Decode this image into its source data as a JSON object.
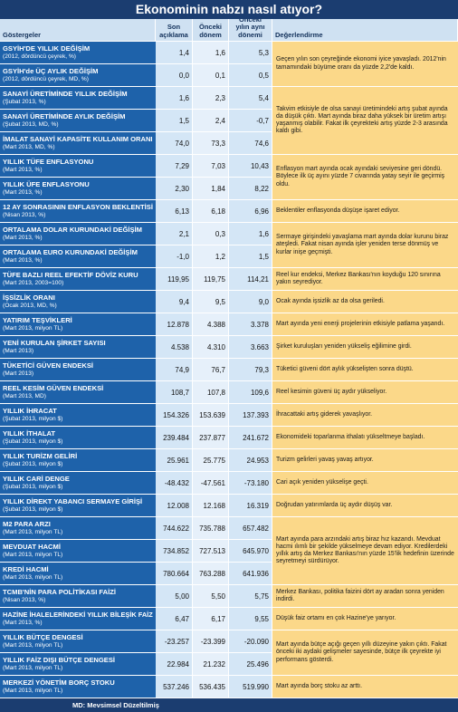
{
  "header": {
    "title": "Ekonominin nabzı nasıl atıyor?"
  },
  "table": {
    "columns": [
      "Göstergeler",
      "Son açıklama",
      "Önceki dönem",
      "Önceki yılın aynı dönemi",
      "Değerlendirme"
    ],
    "rows": [
      {
        "name": "GSYİH'DE YILLIK DEĞİŞİM",
        "period": "(2012, dördüncü çeyrek, %)",
        "values": [
          "1,4",
          "1,6",
          "5,3"
        ],
        "comment": "Geçen yılın son çeyreğinde ekonomi iyice yavaşladı. 2012'nin tamamındaki büyüme oranı da yüzde 2,2'de kaldı."
      },
      {
        "name": "GSYİH'de ÜÇ AYLIK DEĞİŞİM",
        "period": "(2012, dördüncü çeyrek, MD, %)",
        "values": [
          "0,0",
          "0,1",
          "0,5"
        ]
      },
      {
        "name": "SANAYİ ÜRETİMİNDE YILLIK DEĞİŞİM",
        "period": "(Şubat 2013, %)",
        "values": [
          "1,6",
          "2,3",
          "5,4"
        ],
        "comment": "Takvim etkisiyle de olsa sanayi üretimindeki artış şubat ayında da düşük çıktı. Mart ayında biraz daha yüksek bir üretim artışı yaşanmış olabilir. Fakat ilk çeyrekteki artış yüzde 2-3 arasında kaldı gibi."
      },
      {
        "name": "SANAYİ ÜRETİMİNDE AYLIK DEĞİŞİM",
        "period": "(Şubat 2013, MD, %)",
        "values": [
          "1,5",
          "2,4",
          "-0,7"
        ]
      },
      {
        "name": "İMALAT SANAYİ KAPASİTE KULLANIM ORANI",
        "period": "(Mart 2013, MD, %)",
        "values": [
          "74,0",
          "73,3",
          "74,6"
        ]
      },
      {
        "name": "YILLIK TÜFE ENFLASYONU",
        "period": "(Mart 2013, %)",
        "values": [
          "7,29",
          "7,03",
          "10,43"
        ],
        "comment": "Enflasyon mart ayında ocak ayındaki seviyesine geri döndü. Böylece ilk üç ayını yüzde 7 civarında yatay seyir ile geçirmiş oldu."
      },
      {
        "name": "YILLIK ÜFE ENFLASYONU",
        "period": "(Mart 2013, %)",
        "values": [
          "2,30",
          "1,84",
          "8,22"
        ]
      },
      {
        "name": "12 AY SONRASININ ENFLASYON BEKLENTİSİ",
        "period": "(Nisan 2013, %)",
        "values": [
          "6,13",
          "6,18",
          "6,96"
        ],
        "comment": "Beklentiler enflasyonda düşüşe işaret ediyor."
      },
      {
        "name": "ORTALAMA DOLAR KURUNDAKİ DEĞİŞİM",
        "period": "(Mart 2013, %)",
        "values": [
          "2,1",
          "0,3",
          "1,6"
        ],
        "comment": "Sermaye girişindeki yavaşlama mart ayında dolar kurunu biraz ateşledi. Fakat nisan ayında işler yeniden terse dönmüş ve kurlar inişe geçmişti."
      },
      {
        "name": "ORTALAMA EURO KURUNDAKİ DEĞİŞİM",
        "period": "(Mart 2013, %)",
        "values": [
          "-1,0",
          "1,2",
          "1,5"
        ]
      },
      {
        "name": "TÜFE BAZLI REEL EFEKTİF DÖVİZ KURU",
        "period": "(Mart 2013, 2003=100)",
        "values": [
          "119,95",
          "119,75",
          "114,21"
        ],
        "comment": "Reel kur endeksi, Merkez Bankası'nın koyduğu 120 sınırına yakın seyrediyor."
      },
      {
        "name": "İŞSİZLİK ORANI",
        "period": "(Ocak 2013, MD, %)",
        "values": [
          "9,4",
          "9,5",
          "9,0"
        ],
        "comment": "Ocak ayında işsizlik az da olsa geriledi."
      },
      {
        "name": "YATIRIM TEŞVİKLERİ",
        "period": "(Mart 2013, milyon TL)",
        "values": [
          "12.878",
          "4.388",
          "3.378"
        ],
        "comment": "Mart ayında yeni enerji projelerinin etkisiyle patlama yaşandı."
      },
      {
        "name": "YENİ KURULAN ŞİRKET SAYISI",
        "period": "(Mart 2013)",
        "values": [
          "4.538",
          "4.310",
          "3.663"
        ],
        "comment": "Şirket kuruluşları yeniden yükseliş eğilimine girdi."
      },
      {
        "name": "TÜKETİCİ GÜVEN ENDEKSİ",
        "period": "(Mart 2013)",
        "values": [
          "74,9",
          "76,7",
          "79,3"
        ],
        "comment": "Tüketici güveni dört aylık yükselişten sonra düştü."
      },
      {
        "name": "REEL KESİM GÜVEN ENDEKSİ",
        "period": "(Mart 2013, MD)",
        "values": [
          "108,7",
          "107,8",
          "109,6"
        ],
        "comment": "Reel kesimin güveni üç aydır yükseliyor."
      },
      {
        "name": "YILLIK İHRACAT",
        "period": "(Şubat 2013, milyon $)",
        "values": [
          "154.326",
          "153.639",
          "137.393"
        ],
        "comment": "İhracattaki artış giderek yavaşlıyor."
      },
      {
        "name": "YILLIK İTHALAT",
        "period": "(Şubat 2013, milyon $)",
        "values": [
          "239.484",
          "237.877",
          "241.672"
        ],
        "comment": "Ekonomideki toparlanma ithalatı yükseltmeye başladı."
      },
      {
        "name": "YILLIK TURİZM GELİRİ",
        "period": "(Şubat 2013, milyon $)",
        "values": [
          "25.961",
          "25.775",
          "24.953"
        ],
        "comment": "Turizm gelirleri yavaş yavaş artıyor."
      },
      {
        "name": "YILLIK CARİ DENGE",
        "period": "(Şubat 2013, milyon $)",
        "values": [
          "-48.432",
          "-47.561",
          "-73.180"
        ],
        "comment": "Cari açık yeniden yükselişe geçti."
      },
      {
        "name": "YILLIK DİREKT YABANCI SERMAYE GİRİŞİ",
        "period": "(Şubat 2013, milyon $)",
        "values": [
          "12.008",
          "12.168",
          "16.319"
        ],
        "comment": "Doğrudan yatırımlarda üç aydır düşüş var."
      },
      {
        "name": "M2 PARA ARZI",
        "period": "(Mart 2013, milyon TL)",
        "values": [
          "744.622",
          "735.788",
          "657.482"
        ],
        "comment": "Mart ayında para arzındaki artış biraz hız kazandı. Mevduat hacmi ılımlı bir şekilde yükselmeye devam ediyor. Kredilerdeki yıllık artış da Merkez Bankası'nın yüzde 15'lik hedefinin üzerinde seyretmeyi sürdürüyor."
      },
      {
        "name": "MEVDUAT HACMİ",
        "period": "(Mart 2013, milyon TL)",
        "values": [
          "734.852",
          "727.513",
          "645.970"
        ]
      },
      {
        "name": "KREDİ HACMİ",
        "period": "(Mart 2013, milyon TL)",
        "values": [
          "780.664",
          "763.288",
          "641.936"
        ]
      },
      {
        "name": "TCMB'NİN PARA POLİTİKASI FAİZİ",
        "period": "(Nisan 2013, %)",
        "values": [
          "5,00",
          "5,50",
          "5,75"
        ],
        "comment": "Merkez Bankası, politika faizini dört ay aradan sonra yeniden indirdi."
      },
      {
        "name": "HAZİNE İHALELERİNDEKİ YILLIK BİLEŞİK FAİZ",
        "period": "(Mart 2013, %)",
        "values": [
          "6,47",
          "6,17",
          "9,55"
        ],
        "comment": "Düşük faiz ortamı en çok Hazine'ye yarıyor."
      },
      {
        "name": "YILLIK BÜTÇE DENGESİ",
        "period": "(Mart 2013, milyon TL)",
        "values": [
          "-23.257",
          "-23.399",
          "-20.090"
        ],
        "comment": "Mart ayında bütçe açığı geçen yıllı düzeyine yakın çıktı. Fakat önceki iki aydaki gelişmeler sayesinde, bütçe ilk çeyrekte iyi performans gösterdi."
      },
      {
        "name": "YILLIK FAİZ DIŞI BÜTÇE DENGESİ",
        "period": "(Mart 2013, milyon TL)",
        "values": [
          "22.984",
          "21.232",
          "25.496"
        ]
      },
      {
        "name": "MERKEZİ YÖNETİM BORÇ STOKU",
        "period": "(Mart 2013, milyon TL)",
        "values": [
          "537.246",
          "536.435",
          "519.990"
        ],
        "comment": "Mart ayında borç stoku az arttı."
      }
    ]
  },
  "footnote": "MD: Mevsimsel Düzeltilmiş"
}
